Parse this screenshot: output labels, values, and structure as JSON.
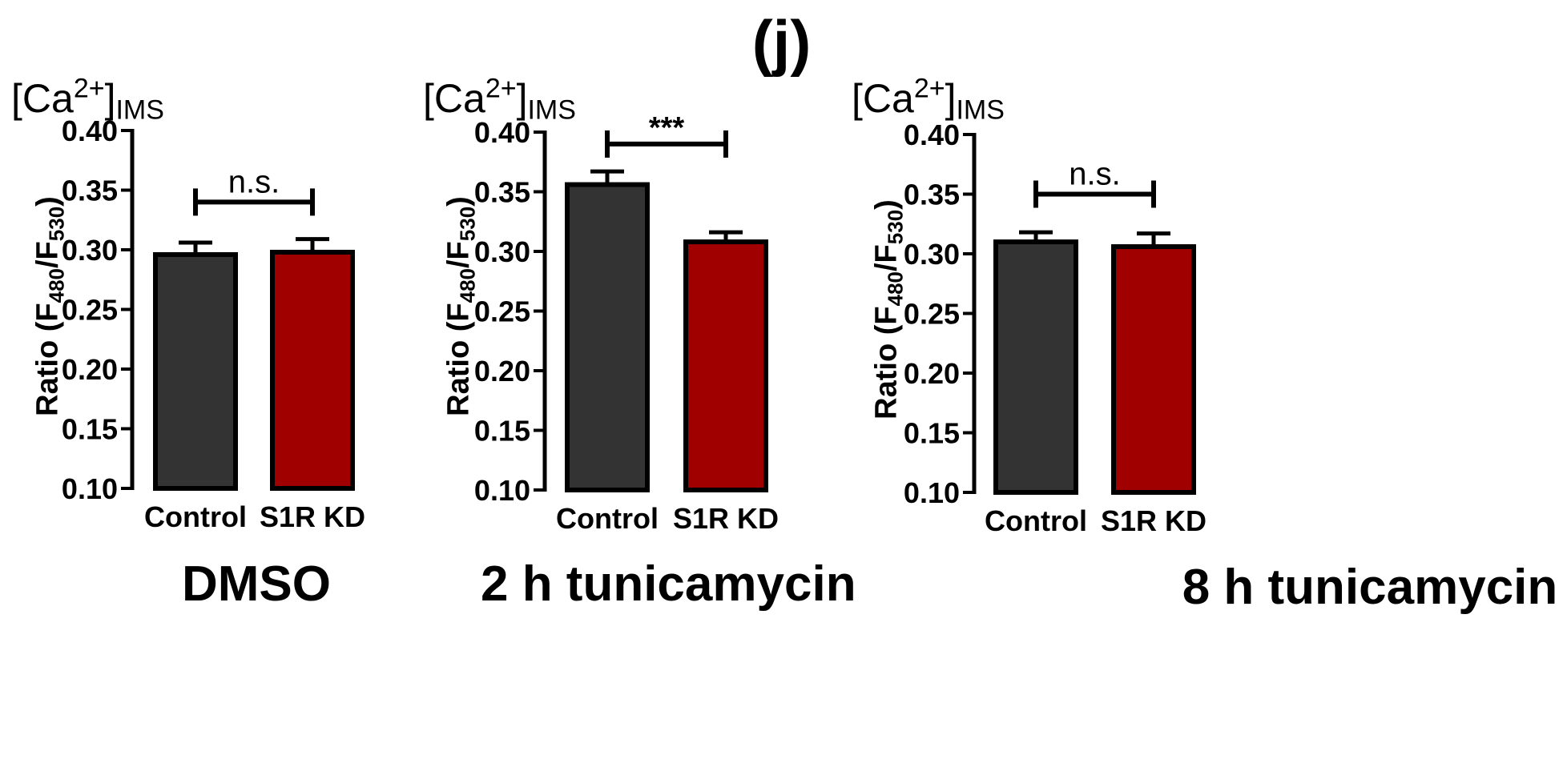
{
  "figure_label": "(j)",
  "charts_common": {
    "ion_label": {
      "main": "[Ca",
      "sup": "2+",
      "close": "]",
      "sub": "IMS"
    },
    "ylabel": {
      "prefix": "Ratio (F",
      "sub1": "480",
      "mid": "/F",
      "sub2": "530",
      "suffix": ")"
    },
    "colors": {
      "Control": "#333333",
      "S1R KD": "#a00000"
    }
  },
  "chart_data": [
    {
      "type": "bar",
      "title": "DMSO",
      "categories": [
        "Control",
        "S1R KD"
      ],
      "values": [
        0.296,
        0.298
      ],
      "errors": [
        0.01,
        0.011
      ],
      "ylim": [
        0.1,
        0.4
      ],
      "yticks": [
        "0.10",
        "0.15",
        "0.20",
        "0.25",
        "0.30",
        "0.35",
        "0.40"
      ],
      "ylabel": "Ratio (F480/F530)",
      "annotation": {
        "text": "n.s.",
        "y": 0.34
      }
    },
    {
      "type": "bar",
      "title": "2 h tunicamycin",
      "categories": [
        "Control",
        "S1R KD"
      ],
      "values": [
        0.356,
        0.308
      ],
      "errors": [
        0.011,
        0.008
      ],
      "ylim": [
        0.1,
        0.4
      ],
      "yticks": [
        "0.10",
        "0.15",
        "0.20",
        "0.25",
        "0.30",
        "0.35",
        "0.40"
      ],
      "ylabel": "Ratio (F480/F530)",
      "annotation": {
        "text": "***",
        "y": 0.39
      }
    },
    {
      "type": "bar",
      "title": "8 h tunicamycin",
      "categories": [
        "Control",
        "S1R KD"
      ],
      "values": [
        0.31,
        0.306
      ],
      "errors": [
        0.008,
        0.011
      ],
      "ylim": [
        0.1,
        0.4
      ],
      "yticks": [
        "0.10",
        "0.15",
        "0.20",
        "0.25",
        "0.30",
        "0.35",
        "0.40"
      ],
      "ylabel": "Ratio (F480/F530)",
      "annotation": {
        "text": "n.s.",
        "y": 0.35
      }
    }
  ]
}
